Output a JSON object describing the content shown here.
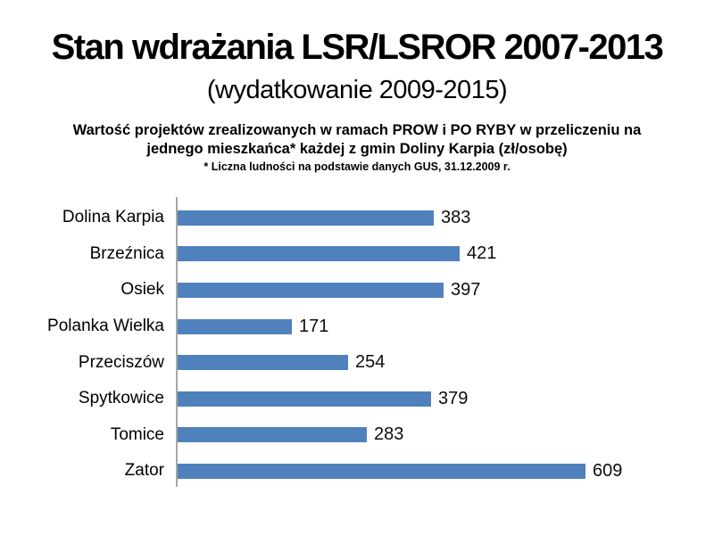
{
  "header": {
    "title": "Stan wdrażania LSR/LSROR 2007-2013",
    "subtitle": "(wydatkowanie 2009-2015)"
  },
  "chart_data": {
    "type": "bar",
    "orientation": "horizontal",
    "title": "Wartość projektów zrealizowanych w ramach PROW i PO RYBY w przeliczeniu na jednego mieszkańca* każdej z gmin Doliny Karpia (zł/osobę)",
    "title_lines": [
      "Wartość projektów zrealizowanych w ramach PROW i PO RYBY w przeliczeniu na",
      "jednego mieszkańca* każdej z gmin Doliny Karpia (zł/osobę)"
    ],
    "footnote": "* Liczna ludności na podstawie danych GUS, 31.12.2009 r.",
    "categories": [
      "Dolina Karpia",
      "Brzeźnica",
      "Osiek",
      "Polanka Wielka",
      "Przeciszów",
      "Spytkowice",
      "Tomice",
      "Zator"
    ],
    "values": [
      383,
      421,
      397,
      171,
      254,
      379,
      283,
      609
    ],
    "xlabel": "",
    "ylabel": "",
    "xlim": [
      0,
      650
    ],
    "grid": false,
    "legend": false,
    "bar_color": "#4F81BD",
    "axis_color": "#A6A6A6",
    "value_label_color": "#0D0D0D",
    "background_color": "#FFFFFF"
  }
}
